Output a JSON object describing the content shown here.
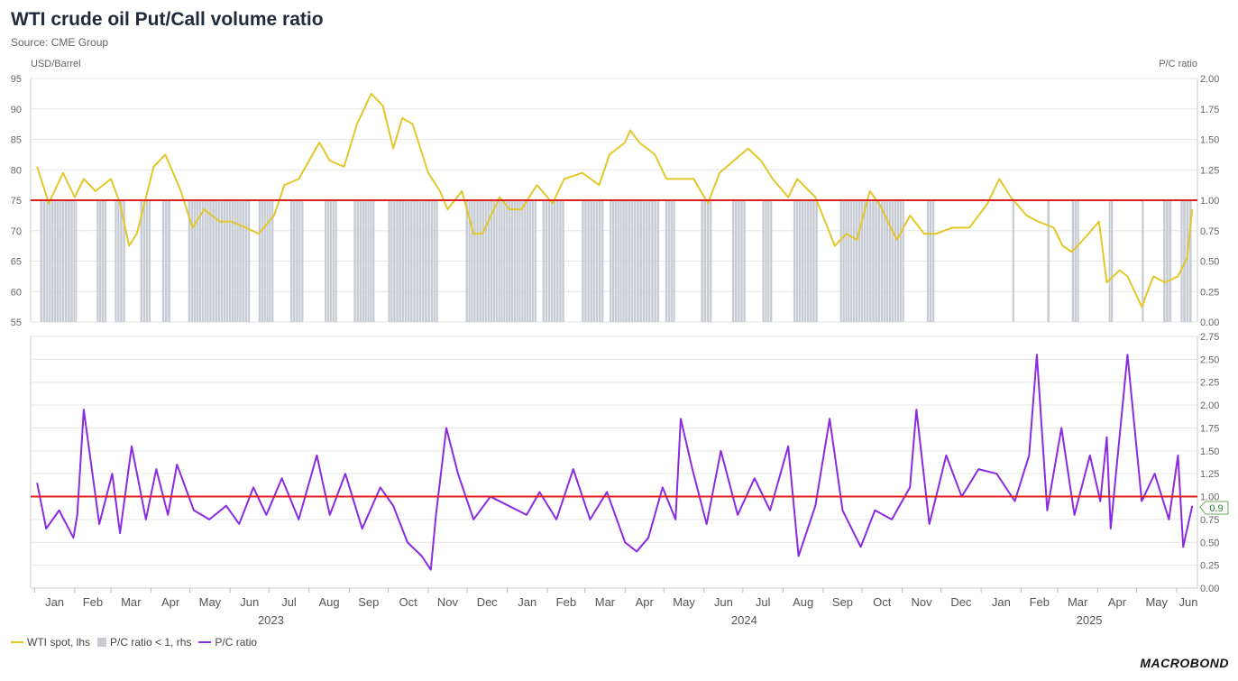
{
  "title": "WTI crude oil Put/Call volume ratio",
  "source": "Source: CME Group",
  "logo": "MACROBOND",
  "legend": {
    "wti": "WTI spot, lhs",
    "shade": "P/C ratio < 1, rhs",
    "pc": "P/C ratio"
  },
  "colors": {
    "wti": "#e3c72a",
    "shade": "#c7ccd4",
    "pc": "#8a2be2",
    "ref": "#e02020"
  },
  "end_badge": "0.9",
  "chart_data": [
    {
      "type": "line",
      "name": "upper-panel",
      "left_axis_label": "USD/Barrel",
      "right_axis_label": "P/C ratio",
      "left_ylim": [
        55,
        95
      ],
      "left_ticks": [
        "95",
        "90",
        "85",
        "80",
        "75",
        "70",
        "65",
        "60",
        "55"
      ],
      "right_ylim": [
        0,
        2
      ],
      "right_ticks": [
        "2.00",
        "1.75",
        "1.50",
        "1.25",
        "1.00",
        "0.75",
        "0.50",
        "0.25",
        "0.00"
      ],
      "reference_line_rhs": 1.0,
      "grid": true,
      "series": [
        {
          "name": "WTI spot, lhs",
          "x": [
            "2023-01-03",
            "2023-01-12",
            "2023-01-23",
            "2023-02-01",
            "2023-02-08",
            "2023-02-17",
            "2023-03-01",
            "2023-03-08",
            "2023-03-15",
            "2023-03-21",
            "2023-04-03",
            "2023-04-12",
            "2023-04-24",
            "2023-05-03",
            "2023-05-12",
            "2023-05-24",
            "2023-06-02",
            "2023-06-13",
            "2023-06-23",
            "2023-07-05",
            "2023-07-13",
            "2023-07-24",
            "2023-08-09",
            "2023-08-17",
            "2023-08-28",
            "2023-09-07",
            "2023-09-18",
            "2023-09-27",
            "2023-10-05",
            "2023-10-12",
            "2023-10-20",
            "2023-11-01",
            "2023-11-10",
            "2023-11-16",
            "2023-11-27",
            "2023-12-06",
            "2023-12-13",
            "2023-12-26",
            "2024-01-03",
            "2024-01-12",
            "2024-01-24",
            "2024-02-05",
            "2024-02-14",
            "2024-02-28",
            "2024-03-12",
            "2024-03-20",
            "2024-04-01",
            "2024-04-05",
            "2024-04-12",
            "2024-04-24",
            "2024-05-03",
            "2024-05-10",
            "2024-05-24",
            "2024-06-04",
            "2024-06-13",
            "2024-06-24",
            "2024-07-05",
            "2024-07-15",
            "2024-07-24",
            "2024-08-05",
            "2024-08-12",
            "2024-08-26",
            "2024-09-10",
            "2024-09-19",
            "2024-09-27",
            "2024-10-07",
            "2024-10-14",
            "2024-10-28",
            "2024-11-07",
            "2024-11-18",
            "2024-11-27",
            "2024-12-10",
            "2024-12-23",
            "2025-01-06",
            "2025-01-15",
            "2025-01-24",
            "2025-02-05",
            "2025-02-14",
            "2025-02-26",
            "2025-03-05",
            "2025-03-12",
            "2025-03-25",
            "2025-04-02",
            "2025-04-08",
            "2025-04-18",
            "2025-04-24",
            "2025-05-05",
            "2025-05-14",
            "2025-05-23",
            "2025-06-02",
            "2025-06-09",
            "2025-06-13"
          ],
          "values": [
            80.5,
            74.5,
            79.5,
            75.5,
            78.5,
            76.5,
            78.5,
            74.5,
            67.5,
            69.5,
            80.5,
            82.5,
            76.5,
            70.5,
            73.5,
            71.5,
            71.5,
            70.5,
            69.5,
            72.5,
            77.5,
            78.5,
            84.5,
            81.5,
            80.5,
            87.5,
            92.5,
            90.5,
            83.5,
            88.5,
            87.5,
            79.5,
            76.5,
            73.5,
            76.5,
            69.5,
            69.5,
            75.5,
            73.5,
            73.5,
            77.5,
            74.5,
            78.5,
            79.5,
            77.5,
            82.5,
            84.5,
            86.5,
            84.5,
            82.5,
            78.5,
            78.5,
            78.5,
            74.5,
            79.5,
            81.5,
            83.5,
            81.5,
            78.5,
            75.5,
            78.5,
            75.5,
            67.5,
            69.5,
            68.5,
            76.5,
            74.5,
            68.5,
            72.5,
            69.5,
            69.5,
            70.5,
            70.5,
            74.5,
            78.5,
            75.5,
            72.5,
            71.5,
            70.5,
            67.5,
            66.5,
            69.5,
            71.5,
            61.5,
            63.5,
            62.5,
            57.5,
            62.5,
            61.5,
            62.5,
            65.5,
            73.5
          ]
        }
      ]
    },
    {
      "type": "line",
      "name": "lower-panel",
      "right_ylim": [
        0,
        2.75
      ],
      "right_ticks": [
        "2.75",
        "2.50",
        "2.25",
        "2.00",
        "1.75",
        "1.50",
        "1.25",
        "1.00",
        "0.75",
        "0.50",
        "0.25",
        "0.00"
      ],
      "reference_line": 1.0,
      "grid": true,
      "series": [
        {
          "name": "P/C ratio",
          "x": [
            "2023-01-03",
            "2023-01-10",
            "2023-01-20",
            "2023-01-31",
            "2023-02-03",
            "2023-02-08",
            "2023-02-20",
            "2023-03-02",
            "2023-03-08",
            "2023-03-17",
            "2023-03-28",
            "2023-04-05",
            "2023-04-14",
            "2023-04-21",
            "2023-05-04",
            "2023-05-16",
            "2023-05-29",
            "2023-06-08",
            "2023-06-19",
            "2023-06-29",
            "2023-07-11",
            "2023-07-24",
            "2023-08-07",
            "2023-08-17",
            "2023-08-29",
            "2023-09-11",
            "2023-09-25",
            "2023-10-05",
            "2023-10-16",
            "2023-10-27",
            "2023-11-03",
            "2023-11-07",
            "2023-11-15",
            "2023-11-24",
            "2023-12-06",
            "2023-12-19",
            "2024-01-02",
            "2024-01-16",
            "2024-01-26",
            "2024-02-08",
            "2024-02-21",
            "2024-03-05",
            "2024-03-18",
            "2024-04-01",
            "2024-04-10",
            "2024-04-19",
            "2024-04-30",
            "2024-05-10",
            "2024-05-14",
            "2024-05-23",
            "2024-06-03",
            "2024-06-14",
            "2024-06-27",
            "2024-07-10",
            "2024-07-22",
            "2024-08-05",
            "2024-08-13",
            "2024-08-26",
            "2024-09-06",
            "2024-09-16",
            "2024-09-30",
            "2024-10-11",
            "2024-10-24",
            "2024-11-07",
            "2024-11-12",
            "2024-11-22",
            "2024-12-05",
            "2024-12-17",
            "2024-12-30",
            "2025-01-13",
            "2025-01-27",
            "2025-02-07",
            "2025-02-13",
            "2025-02-21",
            "2025-03-04",
            "2025-03-14",
            "2025-03-26",
            "2025-04-03",
            "2025-04-08",
            "2025-04-11",
            "2025-04-24",
            "2025-05-05",
            "2025-05-15",
            "2025-05-26",
            "2025-06-02",
            "2025-06-06",
            "2025-06-13"
          ],
          "values": [
            1.15,
            0.65,
            0.85,
            0.55,
            0.8,
            1.95,
            0.7,
            1.25,
            0.6,
            1.55,
            0.75,
            1.3,
            0.8,
            1.35,
            0.85,
            0.75,
            0.9,
            0.7,
            1.1,
            0.8,
            1.2,
            0.75,
            1.45,
            0.8,
            1.25,
            0.65,
            1.1,
            0.9,
            0.5,
            0.35,
            0.2,
            0.8,
            1.75,
            1.25,
            0.75,
            1.0,
            0.9,
            0.8,
            1.05,
            0.75,
            1.3,
            0.75,
            1.05,
            0.5,
            0.4,
            0.55,
            1.1,
            0.75,
            1.85,
            1.3,
            0.7,
            1.5,
            0.8,
            1.2,
            0.85,
            1.55,
            0.35,
            0.9,
            1.85,
            0.85,
            0.45,
            0.85,
            0.75,
            1.1,
            1.95,
            0.7,
            1.45,
            1.0,
            1.3,
            1.25,
            0.95,
            1.45,
            2.55,
            0.85,
            1.75,
            0.8,
            1.45,
            0.95,
            1.65,
            0.65,
            2.55,
            0.95,
            1.25,
            0.75,
            1.45,
            0.45,
            0.9
          ]
        },
        {
          "name": "P/C ratio < 1, rhs",
          "note_periods": true
        }
      ]
    }
  ],
  "x_axis": {
    "months": [
      "Jan",
      "Feb",
      "Mar",
      "Apr",
      "May",
      "Jun",
      "Jul",
      "Aug",
      "Sep",
      "Oct",
      "Nov",
      "Dec",
      "Jan",
      "Feb",
      "Mar",
      "Apr",
      "May",
      "Jun",
      "Jul",
      "Aug",
      "Sep",
      "Oct",
      "Nov",
      "Dec",
      "Jan",
      "Feb",
      "Mar",
      "Apr",
      "May",
      "Jun"
    ],
    "years": [
      "2023",
      "2024",
      "2025"
    ]
  }
}
